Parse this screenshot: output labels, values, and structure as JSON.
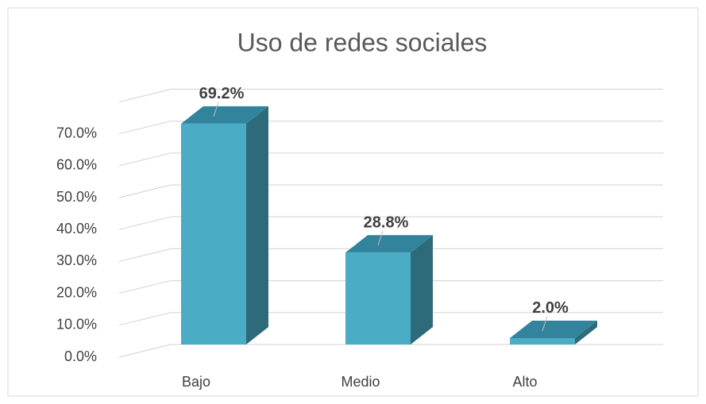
{
  "chart_data": {
    "type": "bar3d",
    "title": "Uso de redes sociales",
    "categories": [
      "Bajo",
      "Medio",
      "Alto"
    ],
    "values": [
      69.2,
      28.8,
      2.0
    ],
    "value_labels": [
      "69.2%",
      "28.8%",
      "2.0%"
    ],
    "color": "#4bacc6",
    "ylim": [
      0,
      80
    ],
    "yticks": [
      {
        "value": 0,
        "label": "0.0%"
      },
      {
        "value": 10,
        "label": "10.0%"
      },
      {
        "value": 20,
        "label": "20.0%"
      },
      {
        "value": 30,
        "label": "30.0%"
      },
      {
        "value": 40,
        "label": "40.0%"
      },
      {
        "value": 50,
        "label": "50.0%"
      },
      {
        "value": 60,
        "label": "60.0%"
      },
      {
        "value": 70,
        "label": "70.0%"
      }
    ],
    "grid": true
  }
}
